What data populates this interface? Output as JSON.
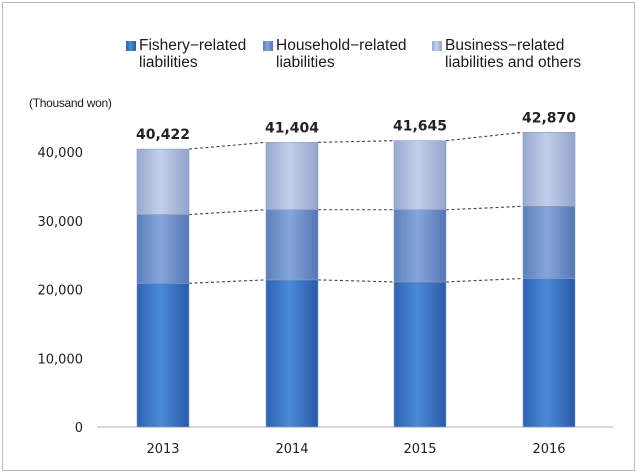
{
  "chart_data": {
    "type": "bar",
    "stacked": true,
    "unit_label": "(Thousand won)",
    "categories": [
      "2013",
      "2014",
      "2015",
      "2016"
    ],
    "series": [
      {
        "name": "Fishery−related liabilities",
        "legend_lines": [
          "Fishery−related",
          "liabilities"
        ],
        "color": "#3a75c4",
        "values": [
          20900,
          21400,
          21100,
          21600
        ]
      },
      {
        "name": "Household−related liabilities",
        "legend_lines": [
          "Household−related",
          "liabilities"
        ],
        "color": "#6a8fcb",
        "values": [
          10000,
          10200,
          10500,
          10500
        ]
      },
      {
        "name": "Business−related liabilities and others",
        "legend_lines": [
          "Business−related",
          "liabilities and others"
        ],
        "color": "#a6b6d8",
        "values": [
          9522,
          9804,
          10045,
          10770
        ]
      }
    ],
    "totals": [
      40422,
      41404,
      41645,
      42870
    ],
    "total_labels": [
      "40,422",
      "41,404",
      "41,645",
      "42,870"
    ],
    "yticks": [
      0,
      10000,
      20000,
      30000,
      40000
    ],
    "ytick_labels": [
      "0",
      "10,000",
      "20,000",
      "30,000",
      "40,000"
    ],
    "ylim": [
      0,
      45000
    ],
    "connector_lines": "dashed",
    "legend_position": "top",
    "grid": false
  }
}
